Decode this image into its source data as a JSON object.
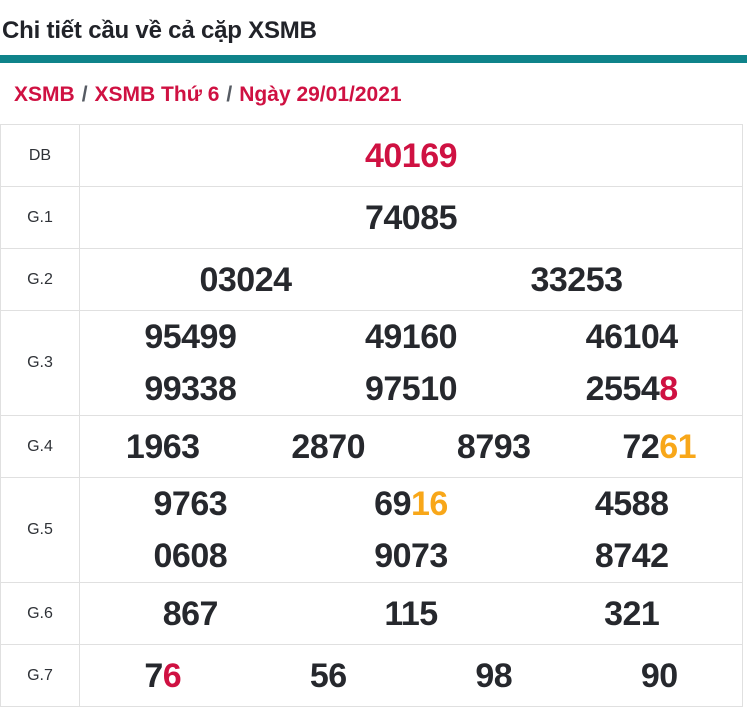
{
  "page": {
    "title": "Chi tiết cầu về cả cặp XSMB"
  },
  "breadcrumb": {
    "items": [
      "XSMB",
      "XSMB Thứ 6",
      "Ngày 29/01/2021"
    ],
    "separator": "/"
  },
  "colors": {
    "accent_red": "#cf1142",
    "accent_orange": "#f8a719",
    "number_dark": "#26282d",
    "teal_bar": "#0f838a",
    "border_gray": "#e0e0e0",
    "separator_gray": "#565b63",
    "title_text": "#212329",
    "label_text": "#2f3237"
  },
  "table": {
    "rows": [
      {
        "label": "DB",
        "lines": [
          [
            [
              [
                "40169",
                "red"
              ]
            ]
          ]
        ]
      },
      {
        "label": "G.1",
        "lines": [
          [
            [
              [
                "74085",
                "dark"
              ]
            ]
          ]
        ]
      },
      {
        "label": "G.2",
        "lines": [
          [
            [
              [
                "03024",
                "dark"
              ]
            ],
            [
              [
                "33253",
                "dark"
              ]
            ]
          ]
        ]
      },
      {
        "label": "G.3",
        "lines": [
          [
            [
              [
                "95499",
                "dark"
              ]
            ],
            [
              [
                "49160",
                "dark"
              ]
            ],
            [
              [
                "46104",
                "dark"
              ]
            ]
          ],
          [
            [
              [
                "99338",
                "dark"
              ]
            ],
            [
              [
                "97510",
                "dark"
              ]
            ],
            [
              [
                "2554",
                "dark"
              ],
              [
                "8",
                "red"
              ]
            ]
          ]
        ]
      },
      {
        "label": "G.4",
        "lines": [
          [
            [
              [
                "1963",
                "dark"
              ]
            ],
            [
              [
                "2870",
                "dark"
              ]
            ],
            [
              [
                "8793",
                "dark"
              ]
            ],
            [
              [
                "72",
                "dark"
              ],
              [
                "61",
                "orange"
              ]
            ]
          ]
        ]
      },
      {
        "label": "G.5",
        "lines": [
          [
            [
              [
                "9763",
                "dark"
              ]
            ],
            [
              [
                "69",
                "dark"
              ],
              [
                "16",
                "orange"
              ]
            ],
            [
              [
                "4588",
                "dark"
              ]
            ]
          ],
          [
            [
              [
                "0608",
                "dark"
              ]
            ],
            [
              [
                "9073",
                "dark"
              ]
            ],
            [
              [
                "8742",
                "dark"
              ]
            ]
          ]
        ]
      },
      {
        "label": "G.6",
        "lines": [
          [
            [
              [
                "867",
                "dark"
              ]
            ],
            [
              [
                "115",
                "dark"
              ]
            ],
            [
              [
                "321",
                "dark"
              ]
            ]
          ]
        ]
      },
      {
        "label": "G.7",
        "lines": [
          [
            [
              [
                "7",
                "dark"
              ],
              [
                "6",
                "red"
              ]
            ],
            [
              [
                "56",
                "dark"
              ]
            ],
            [
              [
                "98",
                "dark"
              ]
            ],
            [
              [
                "90",
                "dark"
              ]
            ]
          ]
        ]
      }
    ]
  }
}
